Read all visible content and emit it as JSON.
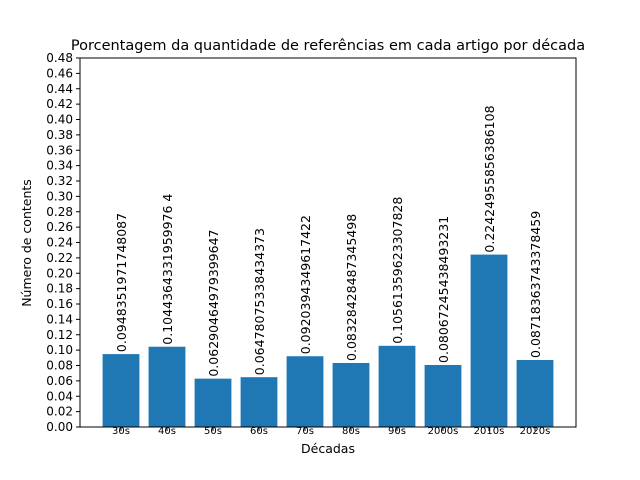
{
  "chart_data": {
    "type": "bar",
    "title": "Porcentagem da quantidade de referências em cada artigo por década",
    "xlabel": "Décadas",
    "ylabel": "Número de contents",
    "categories": [
      "30s",
      "40s",
      "50s",
      "60s",
      "70s",
      "80s",
      "90s",
      "2000s",
      "2010s",
      "2020s"
    ],
    "values": [
      0.0948351971748087,
      0.1044364331959976,
      0.06290464979399647,
      0.06478075338434373,
      0.0920394349617422,
      0.08328428487345498,
      0.10561359623307828,
      0.08067245438493231,
      0.22424955856386108,
      0.08718363743378459
    ],
    "data_labels": [
      "0.0948351971748087",
      "0.1044364331959976 4",
      "0.06290464979399647",
      "0.06478075338434373",
      "0.0920394349617422",
      "0.08328428487345498",
      "0.10561359623307828",
      "0.08067245438493231",
      "0.22424955856386108",
      "0.08718363743378459"
    ],
    "ylim": [
      0,
      0.48
    ],
    "yticks": [
      "0.00",
      "0.02",
      "0.04",
      "0.06",
      "0.08",
      "0.10",
      "0.12",
      "0.14",
      "0.16",
      "0.18",
      "0.20",
      "0.22",
      "0.24",
      "0.26",
      "0.28",
      "0.30",
      "0.32",
      "0.34",
      "0.36",
      "0.38",
      "0.40",
      "0.42",
      "0.44",
      "0.46",
      "0.48"
    ],
    "bar_color": "#1f77b4",
    "grid": false,
    "legend": "none"
  }
}
